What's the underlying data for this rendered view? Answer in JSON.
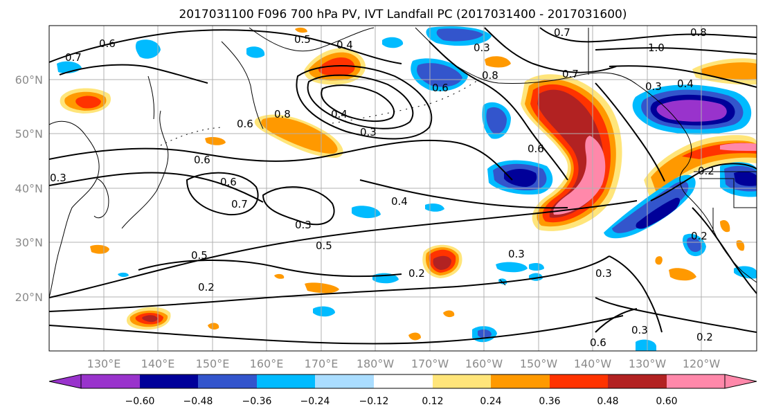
{
  "title": "2017031100 F096 700 hPa PV, IVT Landfall PC (2017031400 - 2017031600)",
  "map": {
    "lat_ticks": [
      "60°N",
      "50°N",
      "40°N",
      "30°N",
      "20°N"
    ],
    "lon_ticks": [
      "130°E",
      "140°E",
      "150°E",
      "160°E",
      "170°E",
      "180°W",
      "170°W",
      "160°W",
      "150°W",
      "140°W",
      "130°W",
      "120°W"
    ],
    "pv_contour_labels": [
      "0.6",
      "0.7",
      "0.5",
      "0.4",
      "0.3",
      "0.7",
      "0.8",
      "1.0",
      "0.7",
      "0.4",
      "0.3",
      "0.8",
      "0.6",
      "0.8",
      "0.6",
      "0.4",
      "0.3",
      "0.6",
      "0.6",
      "0.2",
      "0.3",
      "0.6",
      "0.7",
      "0.4",
      "0.3",
      "0.5",
      "0.5",
      "0.2",
      "0.3",
      "0.2",
      "0.3",
      "0.3",
      "0.2",
      "0.6",
      "0.2"
    ]
  },
  "colorbar": {
    "ticks": [
      "−0.60",
      "−0.48",
      "−0.36",
      "−0.24",
      "−0.12",
      "0.12",
      "0.24",
      "0.36",
      "0.48",
      "0.60"
    ],
    "colors": [
      "#9933cc",
      "#000099",
      "#3355cc",
      "#00bbff",
      "#aaddff",
      "#ffffff",
      "#ffe57a",
      "#ff9900",
      "#ff3300",
      "#b22222",
      "#ff88aa"
    ]
  },
  "shading_colors": {
    "neg_strong": "#9933cc",
    "neg_dark": "#000099",
    "neg_mid": "#3355cc",
    "neg_light": "#00bbff",
    "neg_pale": "#aaddff",
    "pos_pale": "#ffe57a",
    "pos_light": "#ff9900",
    "pos_mid": "#ff3300",
    "pos_dark": "#b22222",
    "pos_strong": "#ff88aa"
  }
}
